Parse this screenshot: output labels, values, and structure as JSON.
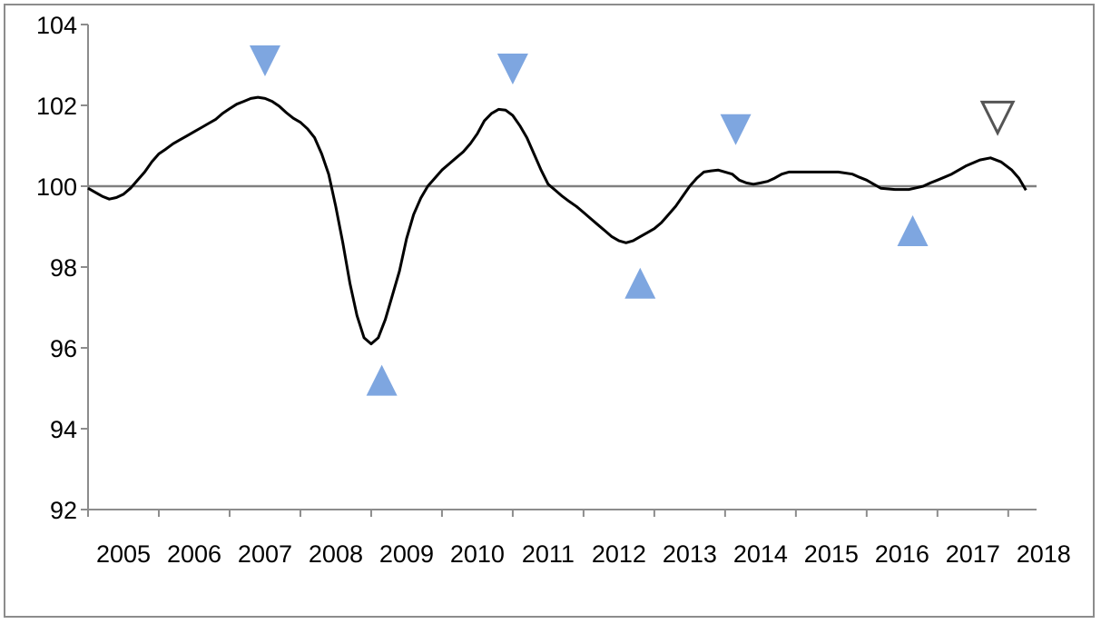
{
  "chart_data": {
    "type": "line",
    "title": "",
    "xlabel": "",
    "ylabel": "",
    "xlim": [
      2005.0,
      2018.4
    ],
    "ylim": [
      92,
      104
    ],
    "y_ticks": [
      "92",
      "94",
      "96",
      "98",
      "100",
      "102",
      "104"
    ],
    "x_ticks": [
      "2005",
      "2006",
      "2007",
      "2008",
      "2009",
      "2010",
      "2011",
      "2012",
      "2013",
      "2014",
      "2015",
      "2016",
      "2017",
      "2018"
    ],
    "reference_line": 100,
    "grid": false,
    "legend": "none",
    "colors": {
      "line": "#000000",
      "reference": "#808080",
      "axis": "#8c8c8c",
      "marker_fill": "#7ea6e0",
      "marker_hollow_stroke": "#555555"
    },
    "series": [
      {
        "points": [
          [
            2005.0,
            99.95
          ],
          [
            2005.1,
            99.85
          ],
          [
            2005.2,
            99.75
          ],
          [
            2005.3,
            99.68
          ],
          [
            2005.4,
            99.72
          ],
          [
            2005.5,
            99.8
          ],
          [
            2005.6,
            99.95
          ],
          [
            2005.7,
            100.15
          ],
          [
            2005.8,
            100.35
          ],
          [
            2005.9,
            100.6
          ],
          [
            2006.0,
            100.8
          ],
          [
            2006.1,
            100.92
          ],
          [
            2006.2,
            101.05
          ],
          [
            2006.3,
            101.15
          ],
          [
            2006.4,
            101.25
          ],
          [
            2006.5,
            101.35
          ],
          [
            2006.6,
            101.45
          ],
          [
            2006.7,
            101.55
          ],
          [
            2006.8,
            101.65
          ],
          [
            2006.9,
            101.8
          ],
          [
            2007.0,
            101.92
          ],
          [
            2007.1,
            102.03
          ],
          [
            2007.2,
            102.1
          ],
          [
            2007.3,
            102.17
          ],
          [
            2007.4,
            102.2
          ],
          [
            2007.5,
            102.17
          ],
          [
            2007.6,
            102.1
          ],
          [
            2007.7,
            101.98
          ],
          [
            2007.8,
            101.82
          ],
          [
            2007.9,
            101.68
          ],
          [
            2008.0,
            101.58
          ],
          [
            2008.1,
            101.42
          ],
          [
            2008.2,
            101.2
          ],
          [
            2008.3,
            100.8
          ],
          [
            2008.4,
            100.3
          ],
          [
            2008.5,
            99.5
          ],
          [
            2008.6,
            98.6
          ],
          [
            2008.7,
            97.6
          ],
          [
            2008.8,
            96.8
          ],
          [
            2008.9,
            96.25
          ],
          [
            2009.0,
            96.1
          ],
          [
            2009.1,
            96.25
          ],
          [
            2009.2,
            96.7
          ],
          [
            2009.3,
            97.3
          ],
          [
            2009.4,
            97.9
          ],
          [
            2009.5,
            98.7
          ],
          [
            2009.6,
            99.3
          ],
          [
            2009.7,
            99.7
          ],
          [
            2009.8,
            100.0
          ],
          [
            2009.9,
            100.2
          ],
          [
            2010.0,
            100.4
          ],
          [
            2010.1,
            100.55
          ],
          [
            2010.2,
            100.7
          ],
          [
            2010.3,
            100.85
          ],
          [
            2010.4,
            101.05
          ],
          [
            2010.5,
            101.3
          ],
          [
            2010.6,
            101.62
          ],
          [
            2010.7,
            101.8
          ],
          [
            2010.8,
            101.9
          ],
          [
            2010.9,
            101.88
          ],
          [
            2011.0,
            101.75
          ],
          [
            2011.1,
            101.5
          ],
          [
            2011.2,
            101.2
          ],
          [
            2011.3,
            100.8
          ],
          [
            2011.4,
            100.4
          ],
          [
            2011.5,
            100.05
          ],
          [
            2011.6,
            99.9
          ],
          [
            2011.7,
            99.75
          ],
          [
            2011.8,
            99.62
          ],
          [
            2011.9,
            99.5
          ],
          [
            2012.0,
            99.35
          ],
          [
            2012.1,
            99.2
          ],
          [
            2012.2,
            99.05
          ],
          [
            2012.3,
            98.9
          ],
          [
            2012.4,
            98.75
          ],
          [
            2012.5,
            98.65
          ],
          [
            2012.6,
            98.6
          ],
          [
            2012.7,
            98.65
          ],
          [
            2012.8,
            98.75
          ],
          [
            2012.9,
            98.85
          ],
          [
            2013.0,
            98.95
          ],
          [
            2013.1,
            99.1
          ],
          [
            2013.2,
            99.3
          ],
          [
            2013.3,
            99.5
          ],
          [
            2013.4,
            99.75
          ],
          [
            2013.5,
            100.0
          ],
          [
            2013.6,
            100.2
          ],
          [
            2013.7,
            100.35
          ],
          [
            2013.8,
            100.38
          ],
          [
            2013.9,
            100.4
          ],
          [
            2014.0,
            100.35
          ],
          [
            2014.1,
            100.3
          ],
          [
            2014.2,
            100.15
          ],
          [
            2014.3,
            100.08
          ],
          [
            2014.4,
            100.05
          ],
          [
            2014.5,
            100.08
          ],
          [
            2014.6,
            100.12
          ],
          [
            2014.7,
            100.2
          ],
          [
            2014.8,
            100.3
          ],
          [
            2014.9,
            100.35
          ],
          [
            2015.0,
            100.35
          ],
          [
            2015.2,
            100.35
          ],
          [
            2015.4,
            100.35
          ],
          [
            2015.6,
            100.35
          ],
          [
            2015.8,
            100.3
          ],
          [
            2015.9,
            100.22
          ],
          [
            2016.0,
            100.15
          ],
          [
            2016.1,
            100.05
          ],
          [
            2016.2,
            99.95
          ],
          [
            2016.4,
            99.92
          ],
          [
            2016.6,
            99.92
          ],
          [
            2016.8,
            100.0
          ],
          [
            2016.9,
            100.08
          ],
          [
            2017.0,
            100.15
          ],
          [
            2017.2,
            100.3
          ],
          [
            2017.4,
            100.5
          ],
          [
            2017.6,
            100.65
          ],
          [
            2017.75,
            100.7
          ],
          [
            2017.9,
            100.6
          ],
          [
            2018.05,
            100.4
          ],
          [
            2018.15,
            100.2
          ],
          [
            2018.25,
            99.9
          ]
        ]
      }
    ],
    "markers": [
      {
        "type": "peak",
        "x": 2007.5,
        "y": 103.1,
        "style": "filled"
      },
      {
        "type": "trough",
        "x": 2009.15,
        "y": 95.2,
        "style": "filled"
      },
      {
        "type": "peak",
        "x": 2011.0,
        "y": 102.9,
        "style": "filled"
      },
      {
        "type": "trough",
        "x": 2012.8,
        "y": 97.6,
        "style": "filled"
      },
      {
        "type": "peak",
        "x": 2014.15,
        "y": 101.4,
        "style": "filled"
      },
      {
        "type": "trough",
        "x": 2016.65,
        "y": 98.9,
        "style": "filled"
      },
      {
        "type": "peak",
        "x": 2017.85,
        "y": 101.7,
        "style": "hollow"
      }
    ]
  }
}
